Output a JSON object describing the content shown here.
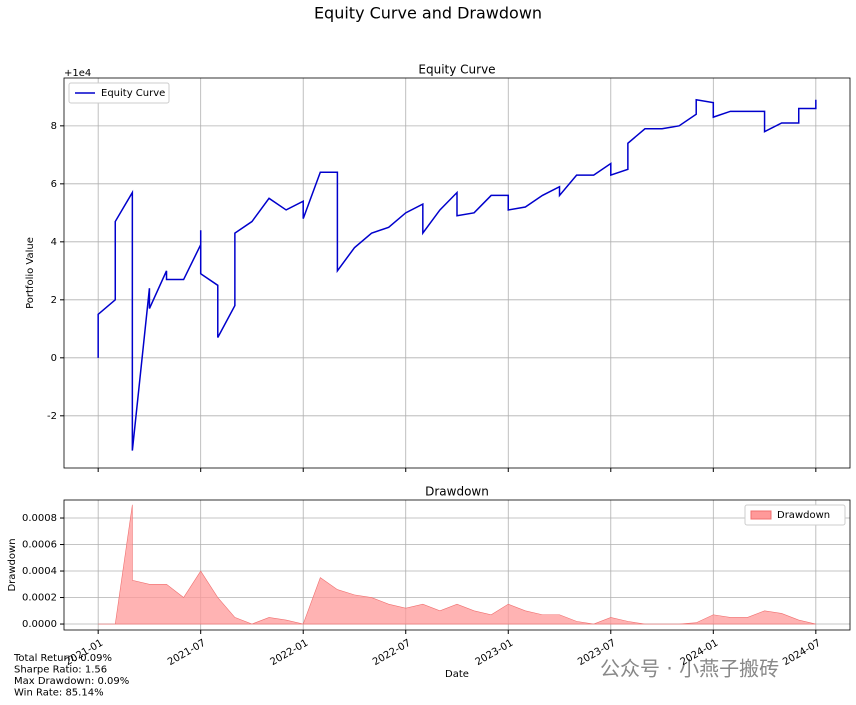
{
  "title": "Equity Curve and Drawdown",
  "chart_data": [
    {
      "type": "line",
      "title": "Equity Curve",
      "ylabel": "Portfolio Value",
      "y_offset_label": "+1e4",
      "x": [
        "2021-01",
        "2021-01",
        "2021-02",
        "2021-02",
        "2021-03",
        "2021-03",
        "2021-04",
        "2021-04",
        "2021-05",
        "2021-05",
        "2021-06",
        "2021-07",
        "2021-07",
        "2021-07",
        "2021-08",
        "2021-08",
        "2021-09",
        "2021-09",
        "2021-10",
        "2021-11",
        "2021-12",
        "2022-01",
        "2022-01",
        "2022-02",
        "2022-03",
        "2022-03",
        "2022-04",
        "2022-05",
        "2022-06",
        "2022-07",
        "2022-08",
        "2022-08",
        "2022-09",
        "2022-10",
        "2022-10",
        "2022-11",
        "2022-12",
        "2023-01",
        "2023-01",
        "2023-02",
        "2023-03",
        "2023-04",
        "2023-04",
        "2023-05",
        "2023-06",
        "2023-07",
        "2023-07",
        "2023-08",
        "2023-08",
        "2023-09",
        "2023-10",
        "2023-11",
        "2023-12",
        "2023-12",
        "2024-01",
        "2024-01",
        "2024-02",
        "2024-03",
        "2024-04",
        "2024-04",
        "2024-05",
        "2024-06",
        "2024-06",
        "2024-07",
        "2024-07"
      ],
      "series": [
        {
          "name": "Equity Curve",
          "color": "#0000cc",
          "values": [
            0,
            1.5,
            2.0,
            4.7,
            5.7,
            -3.2,
            2.4,
            1.7,
            3.0,
            2.7,
            2.7,
            3.9,
            4.4,
            2.9,
            2.5,
            0.7,
            1.8,
            4.3,
            4.7,
            5.5,
            5.1,
            5.4,
            4.8,
            6.4,
            6.4,
            3.0,
            3.8,
            4.3,
            4.5,
            5.0,
            5.3,
            4.3,
            5.1,
            5.7,
            4.9,
            5.0,
            5.6,
            5.6,
            5.1,
            5.2,
            5.6,
            5.9,
            5.6,
            6.3,
            6.3,
            6.7,
            6.3,
            6.5,
            7.4,
            7.9,
            7.9,
            8.0,
            8.4,
            8.9,
            8.8,
            8.3,
            8.5,
            8.5,
            8.5,
            7.8,
            8.1,
            8.1,
            8.6,
            8.6,
            8.9
          ]
        }
      ],
      "xlim": [
        "2020-11",
        "2024-09"
      ],
      "xticks": [
        "2021-01",
        "2021-07",
        "2022-01",
        "2022-07",
        "2023-01",
        "2023-07",
        "2024-01",
        "2024-07"
      ],
      "ylim": [
        -3.8,
        9.65
      ],
      "yticks": [
        -2,
        0,
        2,
        4,
        6,
        8
      ],
      "grid": true,
      "legend": "upper left"
    },
    {
      "type": "area",
      "title": "Drawdown",
      "ylabel": "Drawdown",
      "xlabel": "Date",
      "x": [
        "2021-01",
        "2021-02",
        "2021-03",
        "2021-03",
        "2021-04",
        "2021-05",
        "2021-06",
        "2021-07",
        "2021-08",
        "2021-09",
        "2021-10",
        "2021-11",
        "2021-12",
        "2022-01",
        "2022-02",
        "2022-03",
        "2022-04",
        "2022-05",
        "2022-06",
        "2022-07",
        "2022-08",
        "2022-09",
        "2022-10",
        "2022-11",
        "2022-12",
        "2023-01",
        "2023-02",
        "2023-03",
        "2023-04",
        "2023-05",
        "2023-06",
        "2023-07",
        "2023-08",
        "2023-09",
        "2023-10",
        "2023-11",
        "2023-12",
        "2024-01",
        "2024-02",
        "2024-03",
        "2024-04",
        "2024-05",
        "2024-06",
        "2024-07"
      ],
      "series": [
        {
          "name": "Drawdown",
          "color": "#ff9999",
          "values": [
            0,
            0,
            0.0009,
            0.00033,
            0.0003,
            0.0003,
            0.0002,
            0.0004,
            0.0002,
            5e-05,
            0,
            5e-05,
            3e-05,
            0,
            0.00035,
            0.00026,
            0.00022,
            0.0002,
            0.00015,
            0.00012,
            0.00015,
            0.0001,
            0.00015,
            0.0001,
            7e-05,
            0.00015,
            0.0001,
            7e-05,
            7e-05,
            2e-05,
            0,
            5e-05,
            2e-05,
            0,
            0,
            0,
            1e-05,
            7e-05,
            5e-05,
            5e-05,
            0.0001,
            8e-05,
            3e-05,
            0
          ]
        }
      ],
      "xlim": [
        "2020-11",
        "2024-09"
      ],
      "xticks": [
        "2021-01",
        "2021-07",
        "2022-01",
        "2022-07",
        "2023-01",
        "2023-07",
        "2024-01",
        "2024-07"
      ],
      "ylim": [
        -4.5e-05,
        0.000936
      ],
      "yticks": [
        {
          "value": 0,
          "label": "0.0000"
        },
        {
          "value": 0.0002,
          "label": "0.0002"
        },
        {
          "value": 0.0004,
          "label": "0.0004"
        },
        {
          "value": 0.0006,
          "label": "0.0006"
        },
        {
          "value": 0.0008,
          "label": "0.0008"
        }
      ],
      "grid": true,
      "legend": "upper right"
    }
  ],
  "stats": [
    "Total Return: 0.09%",
    "Sharpe Ratio: 1.56",
    "Max Drawdown: 0.09%",
    "Win Rate: 85.14%"
  ],
  "watermark": "公众号 · 小燕子搬砖"
}
